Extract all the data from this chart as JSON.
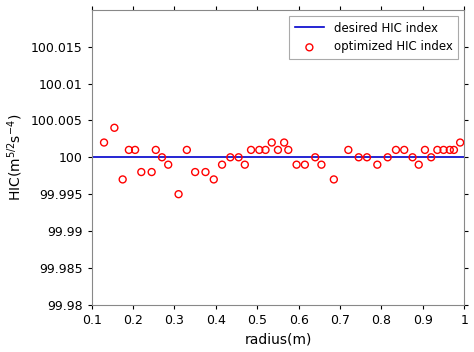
{
  "scatter_x": [
    0.13,
    0.155,
    0.175,
    0.19,
    0.205,
    0.22,
    0.245,
    0.255,
    0.27,
    0.285,
    0.31,
    0.33,
    0.35,
    0.375,
    0.395,
    0.415,
    0.435,
    0.455,
    0.47,
    0.485,
    0.505,
    0.52,
    0.535,
    0.55,
    0.565,
    0.575,
    0.595,
    0.615,
    0.64,
    0.655,
    0.685,
    0.72,
    0.745,
    0.765,
    0.79,
    0.815,
    0.835,
    0.855,
    0.875,
    0.89,
    0.905,
    0.92,
    0.935,
    0.95,
    0.965,
    0.975,
    0.99
  ],
  "scatter_y": [
    100.002,
    100.004,
    99.997,
    100.001,
    100.001,
    99.998,
    99.998,
    100.001,
    100.0,
    99.999,
    99.995,
    100.001,
    99.998,
    99.998,
    99.997,
    99.999,
    100.0,
    100.0,
    99.999,
    100.001,
    100.001,
    100.001,
    100.002,
    100.001,
    100.002,
    100.001,
    99.999,
    99.999,
    100.0,
    99.999,
    99.997,
    100.001,
    100.0,
    100.0,
    99.999,
    100.0,
    100.001,
    100.001,
    100.0,
    99.999,
    100.001,
    100.0,
    100.001,
    100.001,
    100.001,
    100.001,
    100.002
  ],
  "line_x": [
    0.1,
    1.0
  ],
  "line_y": [
    100.0,
    100.0
  ],
  "scatter_color": "#FF0000",
  "line_color": "#0000CC",
  "xlabel": "radius(m)",
  "ylabel_text": "HIC(m$^{5/2}$s$^{-4}$)",
  "xlim": [
    0.1,
    1.0
  ],
  "ylim": [
    99.98,
    100.02
  ],
  "ytick_values": [
    99.98,
    99.985,
    99.99,
    99.995,
    100.0,
    100.005,
    100.01,
    100.015
  ],
  "ytick_labels": [
    "99.98",
    "99.985",
    "99.99",
    "99.995",
    "100",
    "100.005",
    "100.01",
    "100.015"
  ],
  "xticks": [
    0.1,
    0.2,
    0.3,
    0.4,
    0.5,
    0.6,
    0.7,
    0.8,
    0.9,
    1.0
  ],
  "xtick_labels": [
    "0.1",
    "0.2",
    "0.3",
    "0.4",
    "0.5",
    "0.6",
    "0.7",
    "0.8",
    "0.9",
    "1"
  ],
  "legend_line_label": "desired HIC index",
  "legend_scatter_label": "optimized HIC index",
  "marker_size": 5,
  "line_width": 1.2,
  "bg_color": "#ffffff",
  "grid_color": "#d0d0d0",
  "spine_color": "#888888"
}
